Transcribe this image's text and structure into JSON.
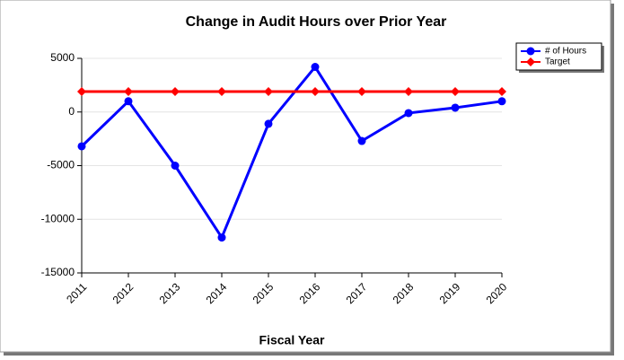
{
  "chart_data": {
    "type": "line",
    "title": "Change in Audit Hours over Prior Year",
    "x_label": "Fiscal Year",
    "categories": [
      "2011",
      "2012",
      "2013",
      "2014",
      "2015",
      "2016",
      "2017",
      "2018",
      "2019",
      "2020"
    ],
    "series": [
      {
        "name": "# of Hours",
        "color": "#0000ff",
        "marker": "circle",
        "values": [
          -3200,
          1000,
          -5000,
          -11700,
          -1100,
          4200,
          -2700,
          -100,
          400,
          1000
        ]
      },
      {
        "name": "Target",
        "color": "#ff0000",
        "marker": "diamond",
        "values": [
          1900,
          1900,
          1900,
          1900,
          1900,
          1900,
          1900,
          1900,
          1900,
          1900
        ]
      }
    ],
    "ylim": [
      -15000,
      5000
    ],
    "yticks": [
      -15000,
      -10000,
      -5000,
      0,
      5000
    ],
    "grid": true,
    "legend": "upper right"
  }
}
